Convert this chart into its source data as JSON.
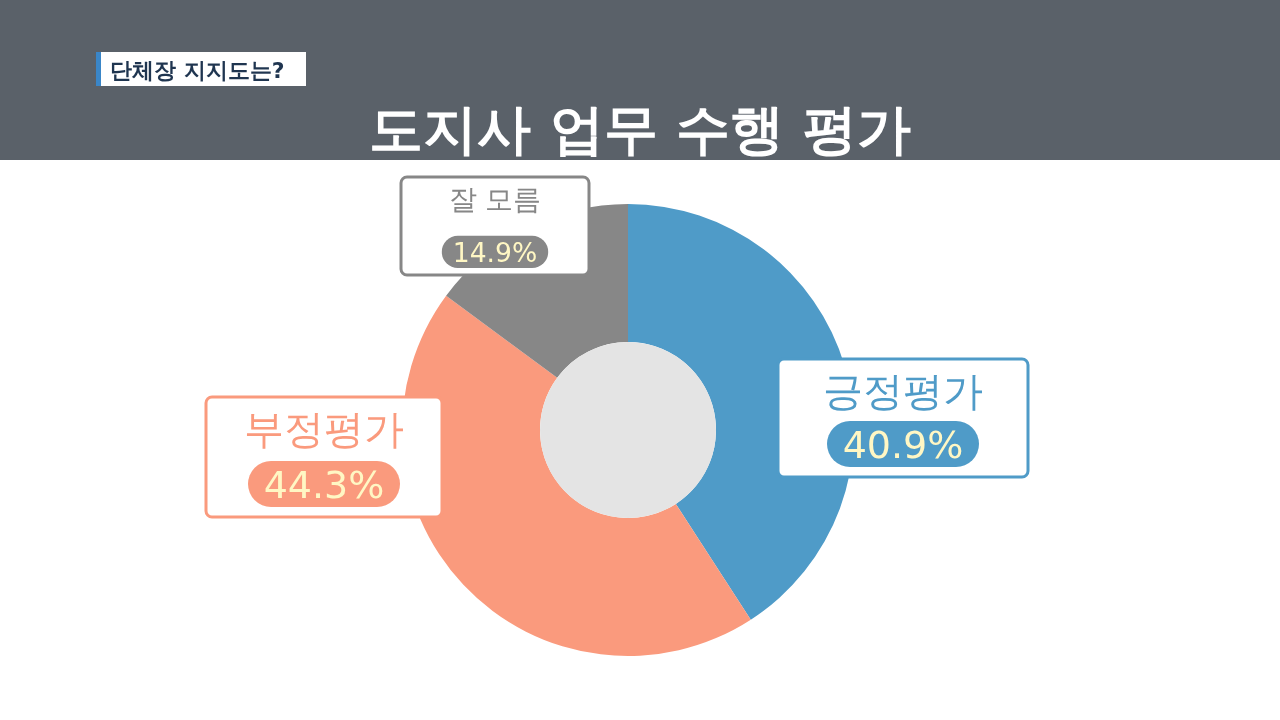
{
  "chart_data": {
    "type": "donut",
    "title": "도지사 업무 수행 평가",
    "subtitle": "단체장 지지도는?",
    "categories": [
      "긍정평가",
      "부정평가",
      "잘 모름"
    ],
    "values": [
      40.9,
      44.3,
      14.9
    ],
    "colors": [
      "#4f9bc8",
      "#fa9a7d",
      "#878787"
    ],
    "value_labels": [
      "40.9%",
      "44.3%",
      "14.9%"
    ]
  }
}
